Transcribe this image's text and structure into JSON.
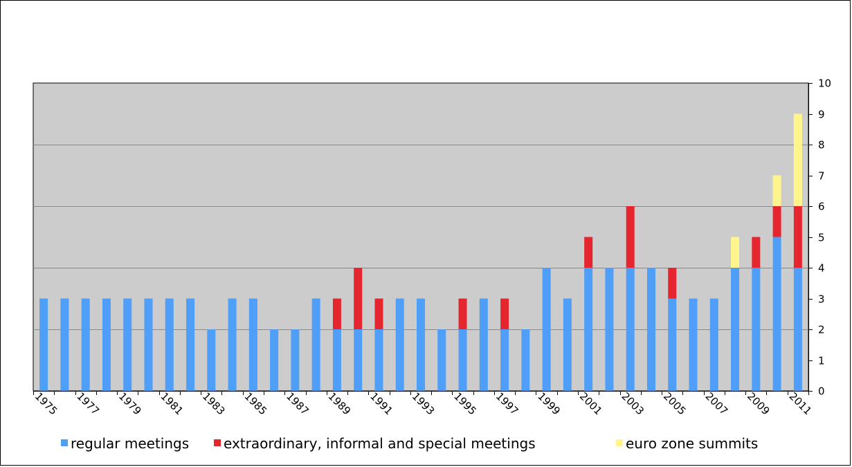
{
  "chart_data": {
    "type": "bar",
    "stacked": true,
    "title": "",
    "xlabel": "",
    "ylabel": "",
    "ylim": [
      0,
      10
    ],
    "y_ticks": [
      0,
      1,
      2,
      3,
      4,
      5,
      6,
      7,
      8,
      9,
      10
    ],
    "y_axis_side": "right",
    "grid": true,
    "legend_position": "bottom",
    "colors": {
      "plot_background": "#cccccc",
      "gridline": "#888888",
      "regular": "#4f9ef7",
      "extraordinary": "#e6262e",
      "euro": "#fff58c"
    },
    "categories": [
      1975,
      1976,
      1977,
      1978,
      1979,
      1980,
      1981,
      1982,
      1983,
      1984,
      1985,
      1986,
      1987,
      1988,
      1989,
      1990,
      1991,
      1992,
      1993,
      1994,
      1995,
      1996,
      1997,
      1998,
      1999,
      2000,
      2001,
      2002,
      2003,
      2004,
      2005,
      2006,
      2007,
      2008,
      2009,
      2010,
      2011
    ],
    "x_tick_labels": [
      "1975",
      "1977",
      "1979",
      "1981",
      "1983",
      "1985",
      "1987",
      "1989",
      "1991",
      "1993",
      "1995",
      "1997",
      "1999",
      "2001",
      "2003",
      "2005",
      "2007",
      "2009",
      "2011"
    ],
    "series": [
      {
        "name": "regular meetings",
        "color": "#4f9ef7",
        "values": [
          3,
          3,
          3,
          3,
          3,
          3,
          3,
          3,
          2,
          3,
          3,
          2,
          2,
          3,
          2,
          2,
          2,
          3,
          3,
          2,
          2,
          3,
          2,
          2,
          4,
          3,
          4,
          4,
          4,
          4,
          3,
          3,
          3,
          4,
          4,
          5,
          4
        ]
      },
      {
        "name": "extraordinary, informal and special meetings",
        "color": "#e6262e",
        "values": [
          0,
          0,
          0,
          0,
          0,
          0,
          0,
          0,
          0,
          0,
          0,
          0,
          0,
          0,
          1,
          2,
          1,
          0,
          0,
          0,
          1,
          0,
          1,
          0,
          0,
          0,
          1,
          0,
          2,
          0,
          1,
          0,
          0,
          0,
          1,
          1,
          2
        ]
      },
      {
        "name": "euro zone summits",
        "color": "#fff58c",
        "values": [
          0,
          0,
          0,
          0,
          0,
          0,
          0,
          0,
          0,
          0,
          0,
          0,
          0,
          0,
          0,
          0,
          0,
          0,
          0,
          0,
          0,
          0,
          0,
          0,
          0,
          0,
          0,
          0,
          0,
          0,
          0,
          0,
          0,
          1,
          0,
          1,
          3
        ]
      }
    ]
  }
}
